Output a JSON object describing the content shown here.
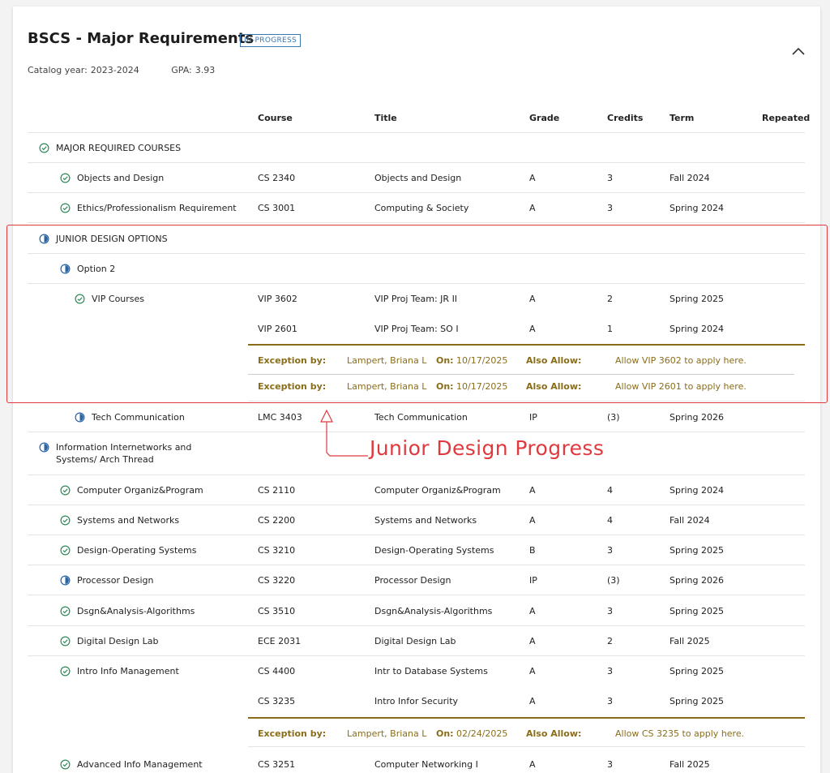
{
  "header": {
    "title": "BSCS - Major Requirements",
    "badge": "IN-PROGRESS",
    "catalog_label": "Catalog year:",
    "catalog_value": "2023-2024",
    "gpa_label": "GPA:",
    "gpa_value": "3.93",
    "collapse_icon": "chevron-up-icon"
  },
  "columns": {
    "course": "Course",
    "title": "Title",
    "grade": "Grade",
    "credits": "Credits",
    "term": "Term",
    "repeated": "Repeated"
  },
  "groups": {
    "major_required": {
      "label": "MAJOR REQUIRED COURSES",
      "status": "complete"
    },
    "objects": {
      "label": "Objects and Design",
      "status": "complete",
      "course": "CS 2340",
      "title": "Objects and Design",
      "grade": "A",
      "credits": "3",
      "term": "Fall 2024"
    },
    "ethics": {
      "label": "Ethics/Professionalism Requirement",
      "status": "complete",
      "course": "CS 3001",
      "title": "Computing & Society",
      "grade": "A",
      "credits": "3",
      "term": "Spring 2024"
    },
    "junior_design": {
      "label": "JUNIOR DESIGN OPTIONS",
      "status": "in-progress"
    },
    "option2": {
      "label": "Option 2",
      "status": "in-progress"
    },
    "vip": {
      "label": "VIP Courses",
      "status": "complete",
      "course": "VIP 3602",
      "title": "VIP Proj Team: JR II",
      "grade": "A",
      "credits": "2",
      "term": "Spring 2025"
    },
    "vip_sub": {
      "course": "VIP 2601",
      "title": "VIP Proj Team: SO I",
      "grade": "A",
      "credits": "1",
      "term": "Spring 2024"
    },
    "vip_exc1": {
      "by_label": "Exception by:",
      "by": "Lampert, Briana L",
      "on_label": "On:",
      "on": "10/17/2025",
      "allow_label": "Also Allow:",
      "allow": "Allow VIP 3602 to apply here."
    },
    "vip_exc2": {
      "by_label": "Exception by:",
      "by": "Lampert, Briana L",
      "on_label": "On:",
      "on": "10/17/2025",
      "allow_label": "Also Allow:",
      "allow": "Allow VIP 2601 to apply here."
    },
    "techcomm": {
      "label": "Tech Communication",
      "status": "in-progress",
      "course": "LMC 3403",
      "title": "Tech Communication",
      "grade": "IP",
      "credits": "(3)",
      "term": "Spring 2026"
    },
    "thread": {
      "label": "Information Internetworks and Systems/ Arch Thread",
      "status": "in-progress"
    },
    "orgprog": {
      "label": "Computer Organiz&Program",
      "status": "complete",
      "course": "CS 2110",
      "title": "Computer Organiz&Program",
      "grade": "A",
      "credits": "4",
      "term": "Spring 2024"
    },
    "sysnet": {
      "label": "Systems and Networks",
      "status": "complete",
      "course": "CS 2200",
      "title": "Systems and Networks",
      "grade": "A",
      "credits": "4",
      "term": "Fall 2024"
    },
    "designos": {
      "label": "Design-Operating Systems",
      "status": "complete",
      "course": "CS 3210",
      "title": "Design-Operating Systems",
      "grade": "B",
      "credits": "3",
      "term": "Spring 2025"
    },
    "processor": {
      "label": "Processor Design",
      "status": "in-progress",
      "course": "CS 3220",
      "title": "Processor Design",
      "grade": "IP",
      "credits": "(3)",
      "term": "Spring 2026"
    },
    "algos": {
      "label": "Dsgn&Analysis-Algorithms",
      "status": "complete",
      "course": "CS 3510",
      "title": "Dsgn&Analysis-Algorithms",
      "grade": "A",
      "credits": "3",
      "term": "Spring 2025"
    },
    "ddlab": {
      "label": "Digital Design Lab",
      "status": "complete",
      "course": "ECE 2031",
      "title": "Digital Design Lab",
      "grade": "A",
      "credits": "2",
      "term": "Fall 2025"
    },
    "infomgmt": {
      "label": "Intro Info Management",
      "status": "complete",
      "course": "CS 4400",
      "title": "Intr to Database Systems",
      "grade": "A",
      "credits": "3",
      "term": "Spring 2025"
    },
    "infomgmt_sub": {
      "course": "CS 3235",
      "title": "Intro Infor Security",
      "grade": "A",
      "credits": "3",
      "term": "Spring 2025"
    },
    "infomgmt_exc": {
      "by_label": "Exception by:",
      "by": "Lampert, Briana L",
      "on_label": "On:",
      "on": "02/24/2025",
      "allow_label": "Also Allow:",
      "allow": "Allow CS 3235 to apply here."
    },
    "advinfo": {
      "label": "Advanced Info Management",
      "status": "complete",
      "course": "CS 3251",
      "title": "Computer Networking I",
      "grade": "A",
      "credits": "3",
      "term": "Fall 2025"
    }
  },
  "annotation": {
    "text": "Junior Design Progress",
    "color": "#e0393e"
  },
  "colors": {
    "complete": "#2e8b57",
    "in_progress": "#2a64a8",
    "exception": "#8a6d1a",
    "badge": "#3a78b5"
  }
}
